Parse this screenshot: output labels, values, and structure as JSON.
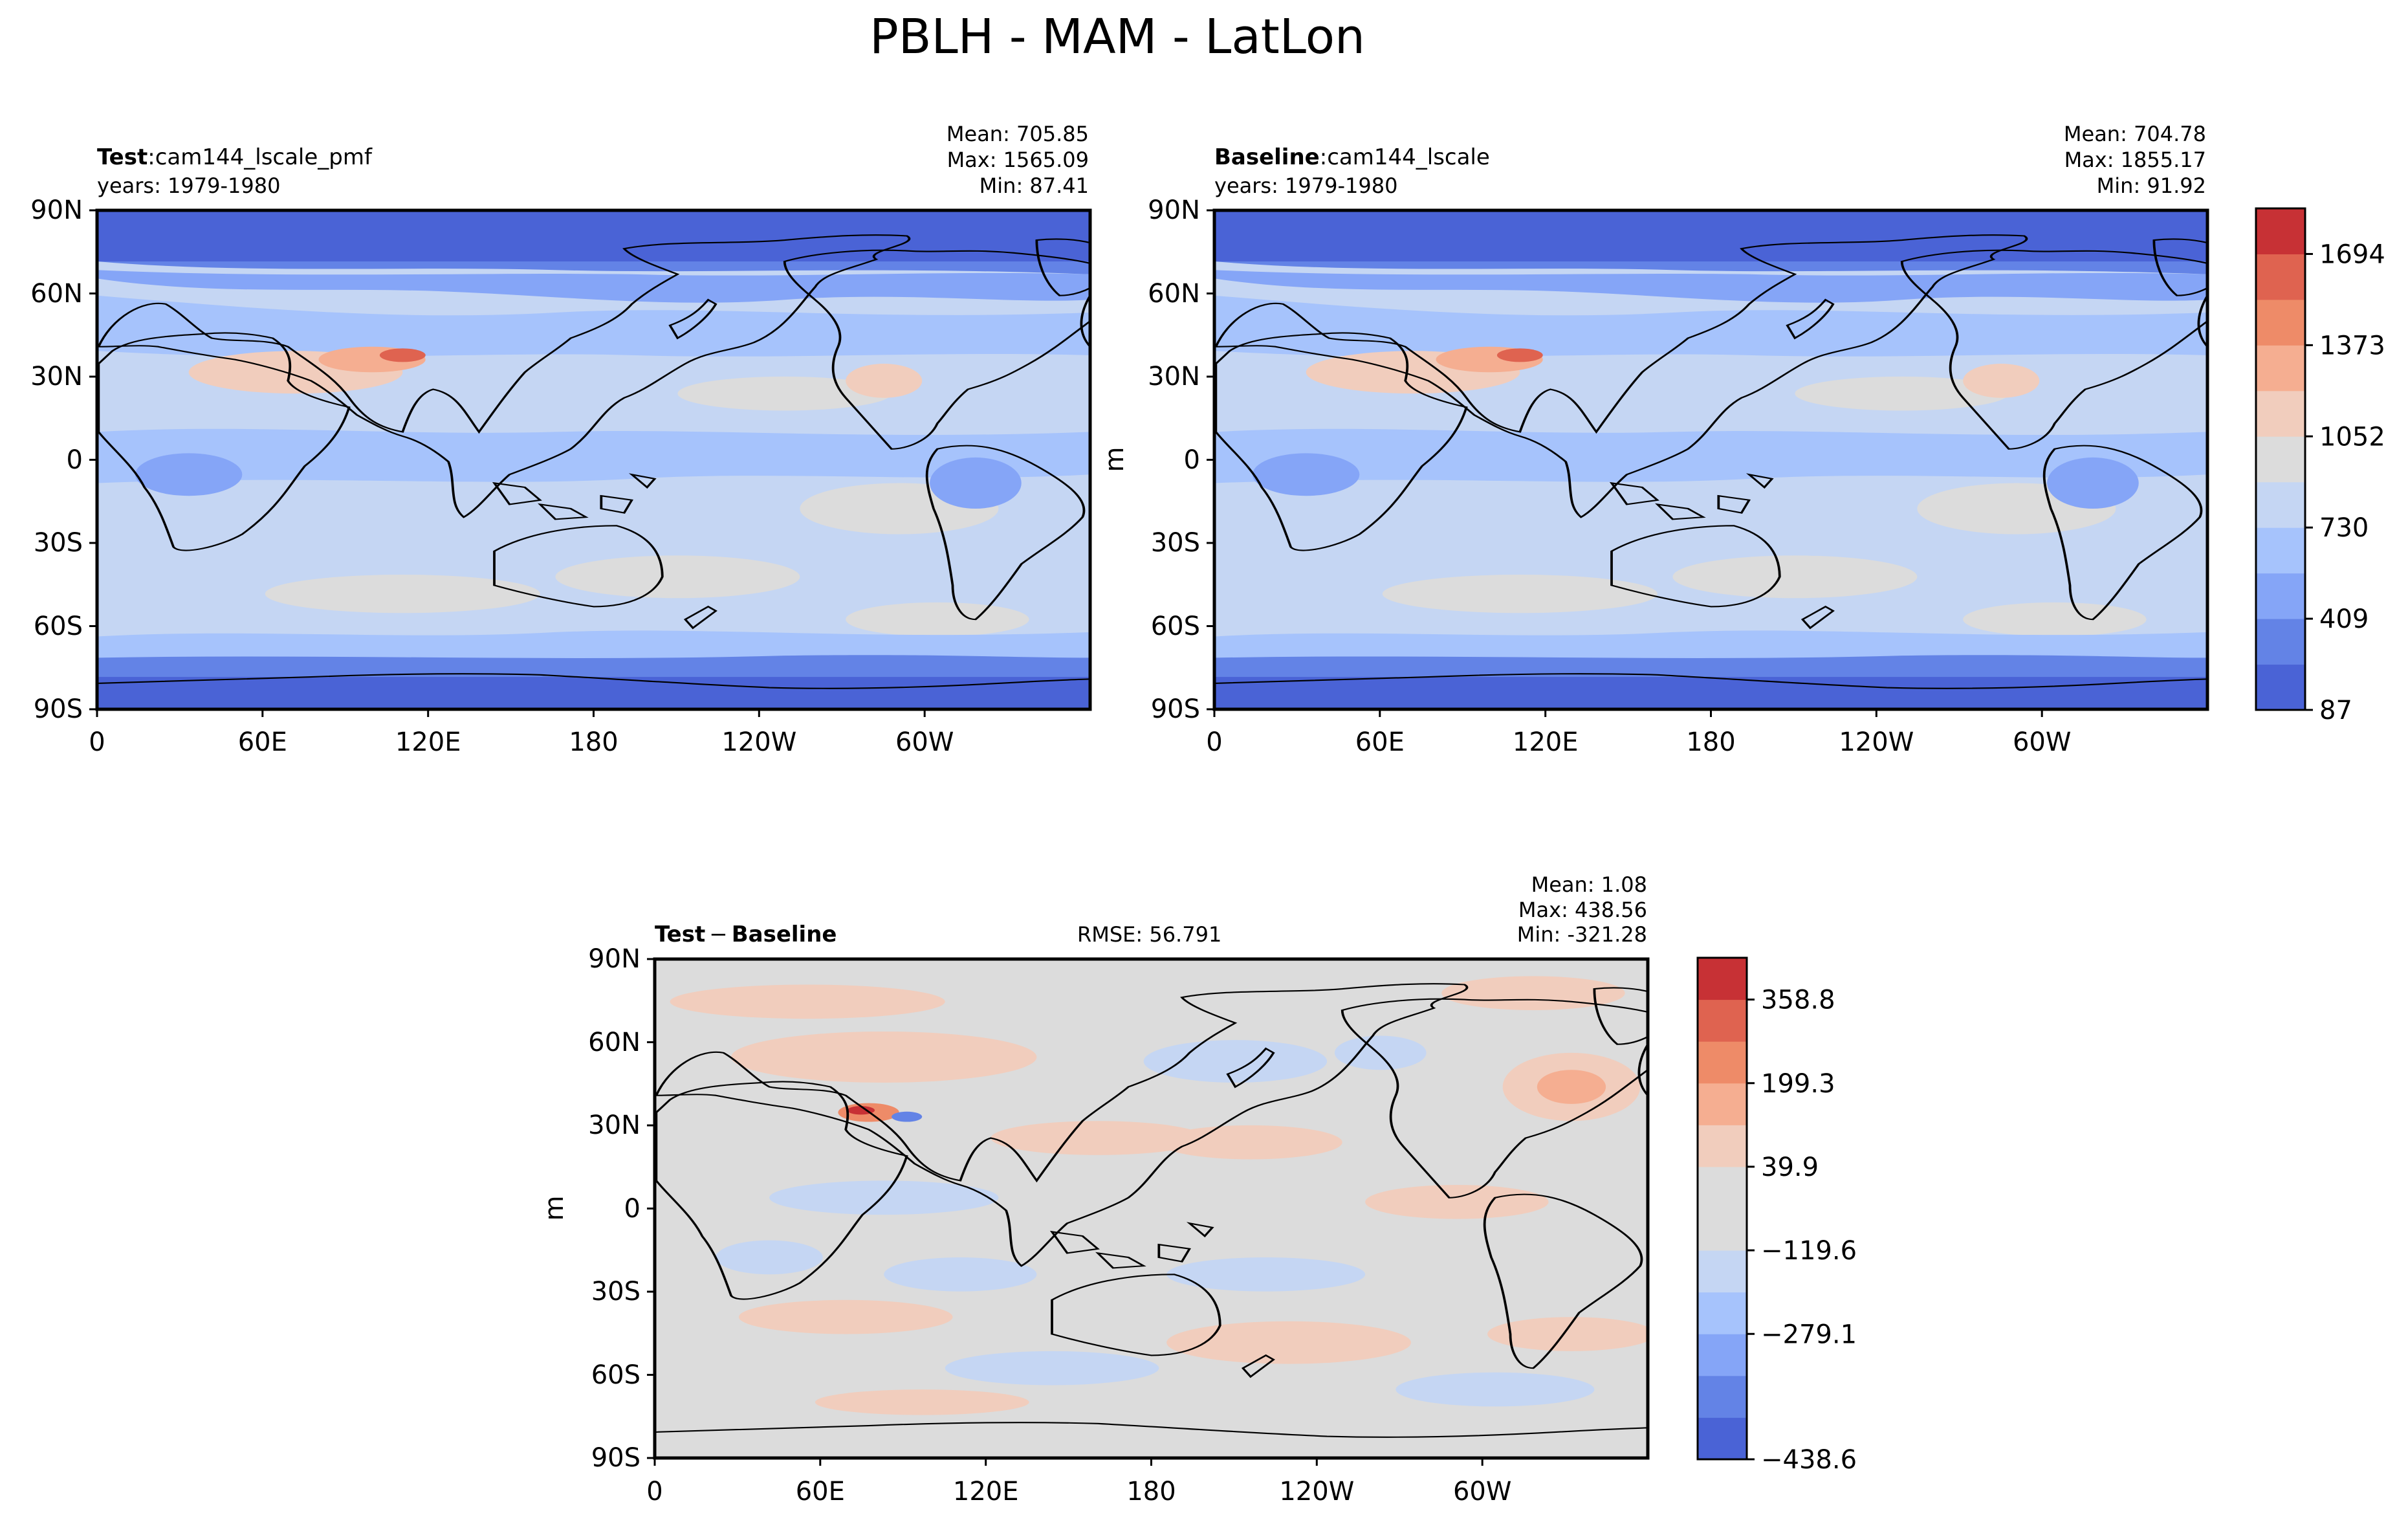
{
  "figure": {
    "title": "PBLH - MAM - LatLon"
  },
  "chart_data": [
    {
      "type": "heatmap",
      "panel": "test",
      "label_bold": "Test",
      "label_sep": ":",
      "label_rest": "cam144_lscale_pmf",
      "years": "years: 1979-1980",
      "stats": [
        "Mean: 705.85",
        "Max: 1565.09",
        "Min: 87.41"
      ],
      "ylabel": "",
      "field": "PBLH",
      "units": "m",
      "x_ticks": [
        "0",
        "60E",
        "120E",
        "180",
        "120W",
        "60W"
      ],
      "y_ticks": [
        "90N",
        "60N",
        "30N",
        "0",
        "30S",
        "60S",
        "90S"
      ],
      "xlim": [
        0,
        360
      ],
      "ylim": [
        -90,
        90
      ]
    },
    {
      "type": "heatmap",
      "panel": "baseline",
      "label_bold": "Baseline",
      "label_sep": ":",
      "label_rest": "cam144_lscale",
      "years": "years: 1979-1980",
      "stats": [
        "Mean: 704.78",
        "Max: 1855.17",
        "Min: 91.92"
      ],
      "ylabel": "m",
      "field": "PBLH",
      "units": "m",
      "x_ticks": [
        "0",
        "60E",
        "120E",
        "180",
        "120W",
        "60W"
      ],
      "y_ticks": [
        "90N",
        "60N",
        "30N",
        "0",
        "30S",
        "60S",
        "90S"
      ],
      "xlim": [
        0,
        360
      ],
      "ylim": [
        -90,
        90
      ],
      "colorbar": {
        "ticks": [
          "1694",
          "1373",
          "1052",
          "730",
          "409",
          "87"
        ],
        "colors": [
          "#4a63d6",
          "#6383e6",
          "#85a5f7",
          "#a6c3fc",
          "#c5d6f3",
          "#dcdcdc",
          "#f1cdbd",
          "#f5ae91",
          "#ee8b68",
          "#df6350",
          "#c73135"
        ]
      }
    },
    {
      "type": "heatmap",
      "panel": "difference",
      "label_bold_a": "Test",
      "label_minus": "−",
      "label_bold_b": "Baseline",
      "rmse": "RMSE: 56.791",
      "stats": [
        "Mean:  1.08",
        "Max: 438.56",
        "Min: -321.28"
      ],
      "ylabel": "m",
      "field": "PBLH difference",
      "units": "m",
      "x_ticks": [
        "0",
        "60E",
        "120E",
        "180",
        "120W",
        "60W"
      ],
      "y_ticks": [
        "90N",
        "60N",
        "30N",
        "0",
        "30S",
        "60S",
        "90S"
      ],
      "xlim": [
        0,
        360
      ],
      "ylim": [
        -90,
        90
      ],
      "colorbar": {
        "ticks": [
          "358.8",
          "199.3",
          "39.9",
          "−119.6",
          "−279.1",
          "−438.6"
        ],
        "colors": [
          "#4a63d6",
          "#6383e6",
          "#85a5f7",
          "#a6c3fc",
          "#c5d6f3",
          "#dcdcdc",
          "#dcdcdc",
          "#f1cdbd",
          "#f5ae91",
          "#ee8b68",
          "#df6350",
          "#c73135"
        ]
      }
    }
  ]
}
